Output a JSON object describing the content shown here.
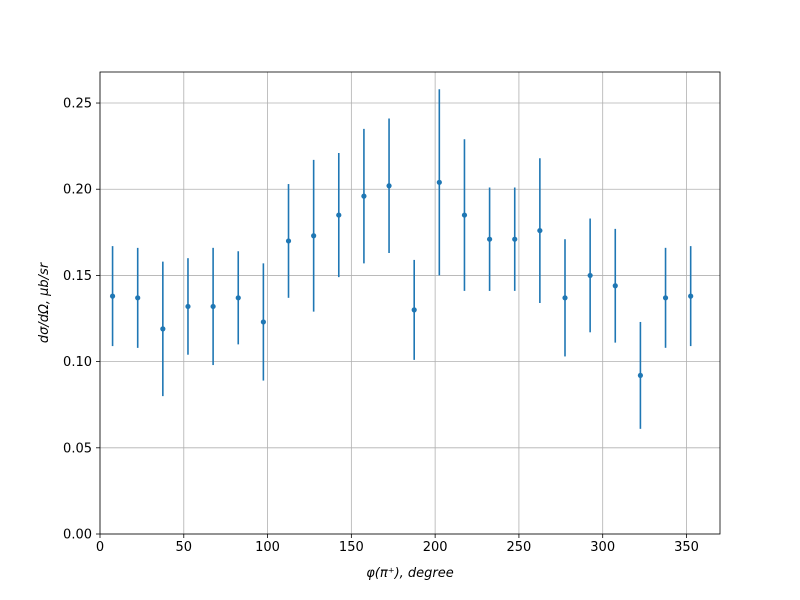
{
  "chart_data": {
    "type": "scatter",
    "x_label": "φ(π⁺), degree",
    "y_label": "dσ/dΩ, μb/sr",
    "x": [
      7.5,
      22.5,
      37.5,
      52.5,
      67.5,
      82.5,
      97.5,
      112.5,
      127.5,
      142.5,
      157.5,
      172.5,
      187.5,
      202.5,
      217.5,
      232.5,
      247.5,
      262.5,
      277.5,
      292.5,
      307.5,
      322.5,
      337.5,
      352.5
    ],
    "series": [
      {
        "color": "#1f77b4",
        "values": [
          0.138,
          0.137,
          0.119,
          0.132,
          0.132,
          0.137,
          0.123,
          0.17,
          0.173,
          0.185,
          0.196,
          0.202,
          0.13,
          0.204,
          0.185,
          0.171,
          0.171,
          0.176,
          0.137,
          0.15,
          0.144,
          0.092,
          0.137,
          0.138
        ],
        "errors": [
          0.029,
          0.029,
          0.039,
          0.028,
          0.034,
          0.027,
          0.034,
          0.033,
          0.044,
          0.036,
          0.039,
          0.039,
          0.029,
          0.054,
          0.044,
          0.03,
          0.03,
          0.042,
          0.034,
          0.033,
          0.033,
          0.031,
          0.029,
          0.029
        ]
      }
    ],
    "xlim": [
      0,
      370
    ],
    "ylim": [
      0,
      0.268
    ],
    "xticks": [
      0,
      50,
      100,
      150,
      200,
      250,
      300,
      350
    ],
    "yticks": [
      {
        "value": 0,
        "label": "0.00"
      },
      {
        "value": 0.05,
        "label": "0.05"
      },
      {
        "value": 0.1,
        "label": "0.10"
      },
      {
        "value": 0.15,
        "label": "0.15"
      },
      {
        "value": 0.2,
        "label": "0.20"
      },
      {
        "value": 0.25,
        "label": "0.25"
      }
    ],
    "grid": true
  }
}
